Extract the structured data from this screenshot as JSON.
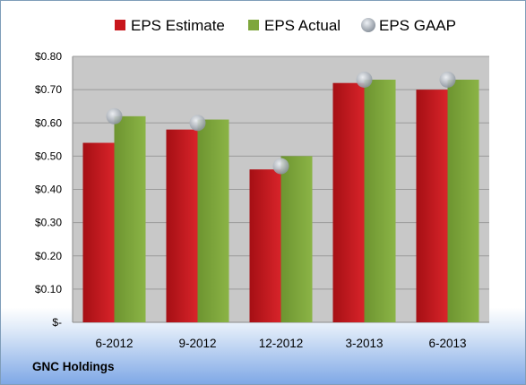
{
  "company": "GNC Holdings",
  "colors": {
    "estimate": "#c8161c",
    "actual": "#7ea63b",
    "gaap": "#b8bec6",
    "plot_bg": "#c8c8c8"
  },
  "chart_data": {
    "type": "bar",
    "categories": [
      "6-2012",
      "9-2012",
      "12-2012",
      "3-2013",
      "6-2013"
    ],
    "series": [
      {
        "name": "EPS Estimate",
        "type": "bar",
        "values": [
          0.54,
          0.58,
          0.46,
          0.72,
          0.7
        ]
      },
      {
        "name": "EPS Actual",
        "type": "bar",
        "values": [
          0.62,
          0.61,
          0.5,
          0.73,
          0.73
        ]
      },
      {
        "name": "EPS GAAP",
        "type": "marker",
        "values": [
          0.62,
          0.6,
          0.47,
          0.73,
          0.73
        ]
      }
    ],
    "ylim": [
      0,
      0.8
    ],
    "yticks": [
      0,
      0.1,
      0.2,
      0.3,
      0.4,
      0.5,
      0.6,
      0.7,
      0.8
    ],
    "ytick_labels": [
      "$-",
      "$0.10",
      "$0.20",
      "$0.30",
      "$0.40",
      "$0.50",
      "$0.60",
      "$0.70",
      "$0.80"
    ],
    "legend": "top",
    "grid": true
  }
}
